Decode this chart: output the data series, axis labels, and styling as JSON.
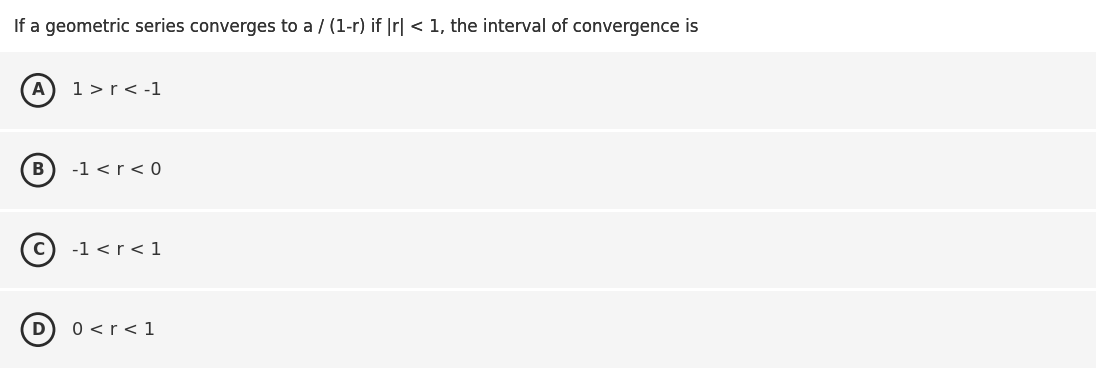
{
  "question": "If a geometric series converges to a / (1-r) if |r| < 1, the interval of convergence is",
  "options": [
    {
      "label": "A",
      "text": "1 > r < -1"
    },
    {
      "label": "B",
      "text": "-1 < r < 0"
    },
    {
      "label": "C",
      "text": "-1 < r < 1"
    },
    {
      "label": "D",
      "text": "0 < r < 1"
    }
  ],
  "fig_bg": "#ffffff",
  "option_bg": "#f5f5f5",
  "divider_color": "#e0e0e0",
  "text_color": "#333333",
  "circle_edge_color": "#2b2b2b",
  "question_fontsize": 12,
  "option_fontsize": 13,
  "label_fontsize": 12,
  "fig_width": 10.96,
  "fig_height": 3.68,
  "dpi": 100
}
